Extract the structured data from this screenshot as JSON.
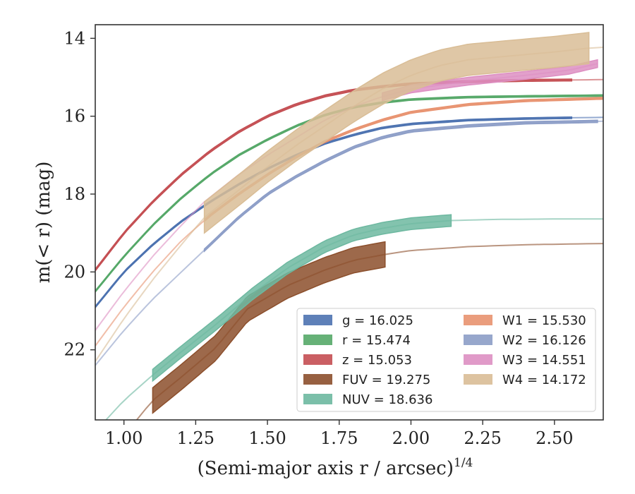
{
  "chart_data": {
    "type": "line",
    "xlabel": "(Semi-major axis r / arcsec)",
    "xlabel_superscript": "1/4",
    "ylabel": "m(< r) (mag)",
    "xlim": [
      0.9,
      2.67
    ],
    "ylim": [
      23.8,
      13.65
    ],
    "y_inverted": true,
    "x_ticks": [
      1.0,
      1.25,
      1.5,
      1.75,
      2.0,
      2.25,
      2.5
    ],
    "x_tick_labels": [
      "1.00",
      "1.25",
      "1.50",
      "1.75",
      "2.00",
      "2.25",
      "2.50"
    ],
    "y_ticks": [
      14,
      16,
      18,
      20,
      22
    ],
    "y_tick_labels": [
      "14",
      "16",
      "18",
      "20",
      "22"
    ],
    "grid": false,
    "legend_position": "lower-right",
    "series": [
      {
        "name": "g",
        "legend": "g = 16.025",
        "color": "#4c72b0",
        "x": [
          0.9,
          1.0,
          1.1,
          1.2,
          1.3,
          1.4,
          1.5,
          1.6,
          1.7,
          1.8,
          1.9,
          2.0,
          2.2,
          2.4,
          2.56,
          2.67
        ],
        "y": [
          20.9,
          20.0,
          19.3,
          18.7,
          18.2,
          17.75,
          17.35,
          17.0,
          16.7,
          16.48,
          16.3,
          16.2,
          16.1,
          16.06,
          16.04,
          16.03
        ],
        "band_width": 0.04,
        "solid_until": 2.56
      },
      {
        "name": "r",
        "legend": "r = 15.474",
        "color": "#55a868",
        "x": [
          0.9,
          1.0,
          1.1,
          1.2,
          1.3,
          1.4,
          1.5,
          1.6,
          1.7,
          1.8,
          1.9,
          2.0,
          2.2,
          2.4,
          2.67
        ],
        "y": [
          20.5,
          19.6,
          18.8,
          18.1,
          17.5,
          17.0,
          16.6,
          16.25,
          15.97,
          15.77,
          15.65,
          15.57,
          15.51,
          15.49,
          15.47
        ],
        "band_width": 0.04,
        "solid_until": 2.67
      },
      {
        "name": "z",
        "legend": "z = 15.053",
        "color": "#c44e52",
        "x": [
          0.9,
          1.0,
          1.1,
          1.2,
          1.3,
          1.4,
          1.5,
          1.6,
          1.7,
          1.8,
          1.9,
          2.0,
          2.2,
          2.4,
          2.56,
          2.67
        ],
        "y": [
          19.95,
          19.0,
          18.2,
          17.5,
          16.9,
          16.4,
          16.0,
          15.7,
          15.48,
          15.33,
          15.24,
          15.17,
          15.11,
          15.08,
          15.07,
          15.06
        ],
        "band_width": 0.05,
        "solid_until": 2.56
      },
      {
        "name": "FUV",
        "legend": "FUV = 19.275",
        "color": "#8c4f2c",
        "x": [
          0.9,
          1.0,
          1.1,
          1.2,
          1.32,
          1.43,
          1.57,
          1.7,
          1.8,
          1.91,
          2.0,
          2.2,
          2.4,
          2.67
        ],
        "y": [
          25.0,
          24.2,
          23.3,
          22.7,
          21.95,
          20.95,
          20.35,
          19.95,
          19.7,
          19.55,
          19.45,
          19.35,
          19.3,
          19.27
        ],
        "band_width": 0.65,
        "solid_from": 1.1,
        "solid_until": 1.91
      },
      {
        "name": "NUV",
        "legend": "NUV = 18.636",
        "color": "#6db8a0",
        "x": [
          0.9,
          1.0,
          1.1,
          1.2,
          1.32,
          1.45,
          1.57,
          1.7,
          1.8,
          1.9,
          2.0,
          2.14,
          2.3,
          2.5,
          2.67
        ],
        "y": [
          24.1,
          23.3,
          22.65,
          22.05,
          21.35,
          20.55,
          19.9,
          19.35,
          19.05,
          18.88,
          18.76,
          18.68,
          18.65,
          18.64,
          18.64
        ],
        "band_width": 0.3,
        "solid_from": 1.1,
        "solid_until": 2.14
      },
      {
        "name": "W1",
        "legend": "W1 = 15.530",
        "color": "#e8926f",
        "x": [
          0.9,
          1.0,
          1.1,
          1.2,
          1.3,
          1.4,
          1.5,
          1.6,
          1.7,
          1.8,
          1.9,
          2.0,
          2.2,
          2.4,
          2.67
        ],
        "y": [
          21.9,
          20.9,
          20.0,
          19.2,
          18.55,
          18.0,
          17.5,
          17.05,
          16.65,
          16.35,
          16.1,
          15.9,
          15.7,
          15.6,
          15.54
        ],
        "band_width": 0.05,
        "solid_from": 1.28,
        "solid_until": 2.67
      },
      {
        "name": "W2",
        "legend": "W2 = 16.126",
        "color": "#8c9dc7",
        "x": [
          0.9,
          1.0,
          1.1,
          1.2,
          1.3,
          1.4,
          1.5,
          1.6,
          1.7,
          1.8,
          1.9,
          2.0,
          2.2,
          2.4,
          2.67
        ],
        "y": [
          22.4,
          21.5,
          20.7,
          20.0,
          19.3,
          18.6,
          18.0,
          17.55,
          17.15,
          16.8,
          16.55,
          16.38,
          16.25,
          16.17,
          16.13
        ],
        "band_width": 0.06,
        "solid_from": 1.28,
        "solid_until": 2.65
      },
      {
        "name": "W3",
        "legend": "W3 = 14.551",
        "color": "#dd8fc2",
        "x": [
          0.9,
          1.0,
          1.1,
          1.2,
          1.28,
          1.4,
          1.5,
          1.6,
          1.7,
          1.8,
          1.9,
          2.0,
          2.2,
          2.4,
          2.55,
          2.65
        ],
        "y": [
          21.5,
          20.5,
          19.6,
          18.8,
          18.2,
          17.5,
          17.0,
          16.55,
          16.1,
          15.75,
          15.5,
          15.3,
          15.1,
          14.95,
          14.82,
          14.65
        ],
        "band_width": 0.2,
        "solid_from": 1.9,
        "solid_until": 2.65
      },
      {
        "name": "W4",
        "legend": "W4 = 14.172",
        "color": "#d9bd96",
        "x": [
          0.9,
          1.0,
          1.1,
          1.2,
          1.28,
          1.4,
          1.5,
          1.6,
          1.7,
          1.8,
          1.9,
          2.0,
          2.1,
          2.2,
          2.35,
          2.5,
          2.62,
          2.67
        ],
        "y": [
          22.3,
          21.2,
          20.2,
          19.3,
          18.6,
          17.9,
          17.3,
          16.75,
          16.25,
          15.75,
          15.3,
          14.95,
          14.7,
          14.55,
          14.45,
          14.35,
          14.25,
          14.23
        ],
        "band_width": 0.8,
        "solid_from": 1.28,
        "solid_until": 2.62
      }
    ]
  }
}
